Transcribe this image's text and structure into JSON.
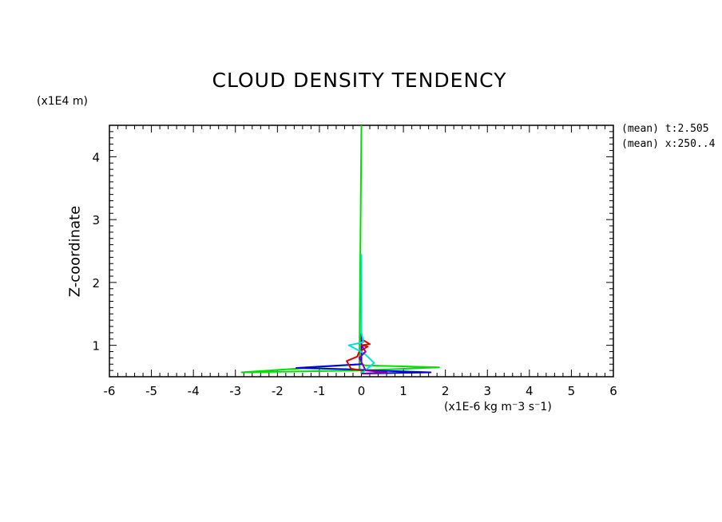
{
  "chart_data": {
    "type": "line",
    "title": "CLOUD DENSITY TENDENCY",
    "xlabel": "(x1E-6 kg m⁻3 s⁻1)",
    "ylabel": "Z-coordinate",
    "y_unit_label": "(x1E4 m)",
    "annotations": [
      "(mean) t:2.505",
      "(mean) x:250..4"
    ],
    "xlim": [
      -6,
      6
    ],
    "ylim": [
      0.5,
      4.5
    ],
    "x_ticks": [
      "-6",
      "-5",
      "-4",
      "-3",
      "-2",
      "-1",
      "0",
      "1",
      "2",
      "3",
      "4",
      "5",
      "6"
    ],
    "y_ticks": [
      "1",
      "2",
      "3",
      "4"
    ],
    "grid": false,
    "colors": {
      "green": "#00e000",
      "cyan": "#00e0e0",
      "blue": "#0000e0",
      "red": "#e00000",
      "purple": "#8800aa"
    },
    "series": [
      {
        "color": "#00e000",
        "x": [
          0,
          0,
          0,
          0.02,
          1.85,
          0.1,
          0,
          -2.85,
          -0.05,
          0
        ],
        "y": [
          0.55,
          0.56,
          0.58,
          0.6,
          0.65,
          0.68,
          0.7,
          0.57,
          0.6,
          4.5
        ]
      },
      {
        "color": "#0000e0",
        "x": [
          0,
          1.65,
          0.3,
          -0.3,
          -1.55,
          0,
          0,
          0,
          0
        ],
        "y": [
          0.55,
          0.57,
          0.6,
          0.62,
          0.64,
          0.7,
          0.9,
          1.2,
          1.5
        ]
      },
      {
        "color": "#e00000",
        "x": [
          0,
          -0.25,
          -0.35,
          -0.1,
          -0.05,
          0.15,
          0,
          0.2,
          0
        ],
        "y": [
          0.6,
          0.63,
          0.75,
          0.82,
          0.9,
          0.98,
          1.0,
          1.02,
          1.1
        ]
      },
      {
        "color": "#00e0e0",
        "x": [
          0,
          0.3,
          0.15,
          0.05,
          -0.3,
          0.05,
          0,
          0,
          0
        ],
        "y": [
          0.55,
          0.72,
          0.82,
          0.88,
          1.0,
          1.05,
          1.2,
          2.0,
          2.45
        ]
      },
      {
        "color": "#8800aa",
        "x": [
          0,
          0.6,
          0.1,
          -0.05,
          0.1,
          0
        ],
        "y": [
          0.55,
          0.57,
          0.6,
          0.8,
          0.9,
          1.0
        ]
      }
    ]
  }
}
